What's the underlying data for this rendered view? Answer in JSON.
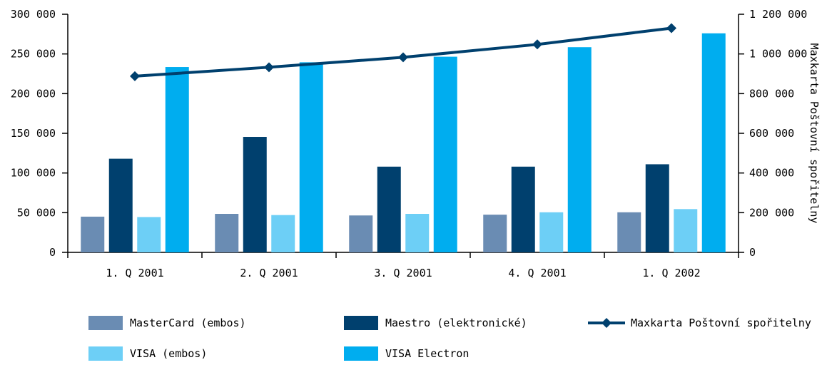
{
  "chart_data": {
    "type": "bar",
    "categories": [
      "1. Q 2001",
      "2. Q 2001",
      "3. Q 2001",
      "4. Q 2001",
      "1. Q 2002"
    ],
    "series": [
      {
        "name": "MasterCard (embos)",
        "type": "bar",
        "axis": "left",
        "color": "#6a8cb3",
        "values": [
          45000,
          48500,
          46500,
          47500,
          50500
        ]
      },
      {
        "name": "Maestro (elektronické)",
        "type": "bar",
        "axis": "left",
        "color": "#00406e",
        "values": [
          118000,
          145500,
          108000,
          108000,
          111000
        ]
      },
      {
        "name": "VISA (embos)",
        "type": "bar",
        "axis": "left",
        "color": "#6dcff6",
        "values": [
          44500,
          47000,
          48500,
          50500,
          54500
        ]
      },
      {
        "name": "VISA Electron",
        "type": "bar",
        "axis": "left",
        "color": "#00adef",
        "values": [
          233500,
          239500,
          246500,
          258500,
          276000
        ]
      },
      {
        "name": "Maxkarta Poštovní spořitelny",
        "type": "line",
        "axis": "right",
        "color": "#00406e",
        "values": [
          888000,
          933000,
          983000,
          1048000,
          1130000
        ]
      }
    ],
    "y_left": {
      "ylim": [
        0,
        300000
      ],
      "ticks": [
        0,
        50000,
        100000,
        150000,
        200000,
        250000,
        300000
      ],
      "tick_labels": [
        "0",
        "50 000",
        "100 000",
        "150 000",
        "200 000",
        "250 000",
        "300 000"
      ]
    },
    "y_right": {
      "ylabel": "Maxkarta Poštovní spořitelny",
      "ylim": [
        0,
        1200000
      ],
      "ticks": [
        0,
        200000,
        400000,
        600000,
        800000,
        1000000,
        1200000
      ],
      "tick_labels": [
        "0",
        "200 000",
        "400 000",
        "600 000",
        "800 000",
        "1 000 000",
        "1 200 000"
      ]
    },
    "legend": {
      "placement": "bottom",
      "entries": [
        {
          "label": "MasterCard (embos)",
          "kind": "bar",
          "color": "#6a8cb3"
        },
        {
          "label": "Maestro (elektronické)",
          "kind": "bar",
          "color": "#00406e"
        },
        {
          "label": "Maxkarta Poštovní spořitelny",
          "kind": "line",
          "color": "#00406e"
        },
        {
          "label": "VISA (embos)",
          "kind": "bar",
          "color": "#6dcff6"
        },
        {
          "label": "VISA Electron",
          "kind": "bar",
          "color": "#00adef"
        }
      ]
    },
    "grid": false
  }
}
